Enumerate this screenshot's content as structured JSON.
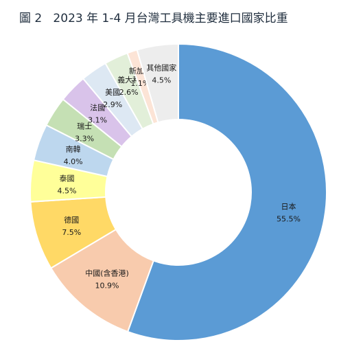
{
  "chart_data": {
    "type": "pie",
    "title": "圖 2   2023 年 1-4 月台灣工具機主要進口國家比重",
    "donut": true,
    "categories": [
      "日本",
      "中國(含香港)",
      "德國",
      "泰國",
      "南韓",
      "瑞士",
      "法國",
      "美國",
      "義大利",
      "新加坡",
      "其他國家"
    ],
    "values": [
      55.5,
      10.9,
      7.5,
      4.5,
      4.0,
      3.3,
      3.1,
      2.9,
      2.6,
      1.1,
      4.5
    ],
    "value_labels": [
      "55.5%",
      "10.9%",
      "7.5%",
      "4.5%",
      "4.0%",
      "3.3%",
      "3.1%",
      "2.9%",
      "2.6%",
      "1.1%",
      "4.5%"
    ],
    "colors": [
      "#5b9bd5",
      "#f8cbad",
      "#ffd966",
      "#ffff99",
      "#bdd7ee",
      "#c5e0b4",
      "#d9c3ea",
      "#dde8f3",
      "#e2efd9",
      "#fce4d6",
      "#ededed"
    ],
    "label_colors": [
      "#1a1a1a",
      "#1a1a1a",
      "#1a1a1a",
      "#1a1a1a",
      "#1a1a1a",
      "#1a1a1a",
      "#1a1a1a",
      "#1a1a1a",
      "#1a1a1a",
      "#1a1a1a",
      "#1a1a1a"
    ],
    "start_angle_deg": 0,
    "direction": "clockwise"
  }
}
